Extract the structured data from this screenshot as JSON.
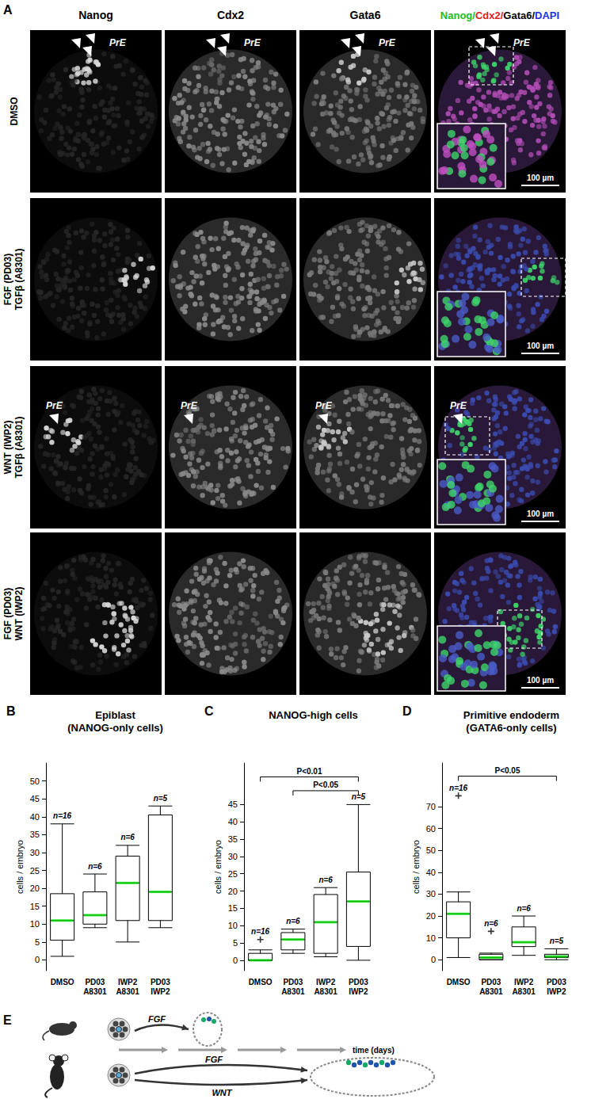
{
  "panels": [
    "A",
    "B",
    "C",
    "D",
    "E"
  ],
  "panel_a": {
    "columns": [
      "Nanog",
      "Cdx2",
      "Gata6"
    ],
    "merge_header": [
      {
        "text": "Nanog/",
        "color": "#22bb22"
      },
      {
        "text": "Cdx2/",
        "color": "#dd2222"
      },
      {
        "text": "Gata6/",
        "color": "#000000"
      },
      {
        "text": "DAPI",
        "color": "#2233dd"
      }
    ],
    "rows": [
      {
        "label": [
          "DMSO"
        ],
        "prE": true
      },
      {
        "label": [
          "FGF (PD03)",
          "TGFβ (A8301)"
        ],
        "prE": false
      },
      {
        "label": [
          "WNT (IWP2)",
          "TGFβ (A8301)"
        ],
        "prE": true
      },
      {
        "label": [
          "FGF (PD03)",
          "WNT (IWP2)"
        ],
        "prE": false
      }
    ],
    "marker_label": "PrE",
    "scale_bar": "100 µm"
  },
  "chart_data": [
    {
      "type": "boxplot",
      "title": "Epiblast\n(NANOG-only cells)",
      "y_label": "cells / embryo",
      "categories": [
        "DMSO",
        "PD03\nA8301",
        "IWP2\nA8301",
        "PD03\nIWP2"
      ],
      "boxes": [
        [
          1,
          5.5,
          11,
          18.5,
          38
        ],
        [
          9,
          10,
          12.5,
          19,
          24
        ],
        [
          5,
          11,
          21.5,
          29,
          32
        ],
        [
          9,
          11,
          19,
          40.5,
          43
        ]
      ],
      "outliers": [
        [],
        [],
        [],
        []
      ],
      "n_labels": [
        "n=16",
        "n=6",
        "n=6",
        "n=5"
      ],
      "ylim": [
        -3,
        55
      ],
      "yticks": [
        0,
        5,
        10,
        15,
        20,
        25,
        30,
        35,
        40,
        45,
        50
      ],
      "brackets": [],
      "color": "#000000",
      "median_color": "#00dd00"
    },
    {
      "type": "boxplot",
      "title": "NANOG-high cells",
      "y_label": "cells / embryo",
      "categories": [
        "DMSO",
        "PD03\nA8301",
        "IWP2\nA8301",
        "PD03\nIWP2"
      ],
      "boxes": [
        [
          0,
          0,
          0,
          2,
          3
        ],
        [
          2,
          3,
          6,
          8,
          9
        ],
        [
          1,
          2,
          11,
          19,
          21
        ],
        [
          0,
          4,
          17,
          25.5,
          45
        ]
      ],
      "outliers": [
        [
          6
        ],
        [],
        [],
        []
      ],
      "n_labels": [
        "n=16",
        "n=6",
        "n=6",
        "n=5"
      ],
      "ylim": [
        -3,
        57
      ],
      "yticks": [
        0,
        5,
        10,
        15,
        20,
        25,
        30,
        35,
        40,
        45
      ],
      "brackets": [
        {
          "from": 0,
          "to": 3,
          "y": 53,
          "label": "P<0.01"
        },
        {
          "from": 1,
          "to": 3,
          "y": 49,
          "label": "P<0.05"
        }
      ],
      "color": "#000000",
      "median_color": "#00dd00"
    },
    {
      "type": "boxplot",
      "title": "Primitive endoderm\n(GATA6-only cells)",
      "y_label": "cells / embryo",
      "categories": [
        "DMSO",
        "PD03\nA8301",
        "IWP2\nA8301",
        "PD03\nIWP2"
      ],
      "boxes": [
        [
          1,
          10,
          21,
          26.5,
          31
        ],
        [
          0,
          0,
          1,
          2.5,
          3
        ],
        [
          2,
          6,
          8,
          15,
          20
        ],
        [
          0,
          1,
          1.5,
          2.5,
          5
        ]
      ],
      "outliers": [
        [
          75
        ],
        [
          13
        ],
        [],
        []
      ],
      "n_labels": [
        "n=16",
        "n=6",
        "n=6",
        "n=5"
      ],
      "ylim": [
        -5,
        90
      ],
      "yticks": [
        0,
        10,
        20,
        30,
        40,
        50,
        60,
        70
      ],
      "brackets": [
        {
          "from": 0,
          "to": 3,
          "y": 84,
          "label": "P<0.05"
        }
      ],
      "color": "#000000",
      "median_color": "#00dd00"
    }
  ],
  "panel_e": {
    "mouse_arrows": [
      "FGF"
    ],
    "marmoset_arrows": [
      "FGF",
      "WNT"
    ],
    "time_axis": "time (days)"
  }
}
